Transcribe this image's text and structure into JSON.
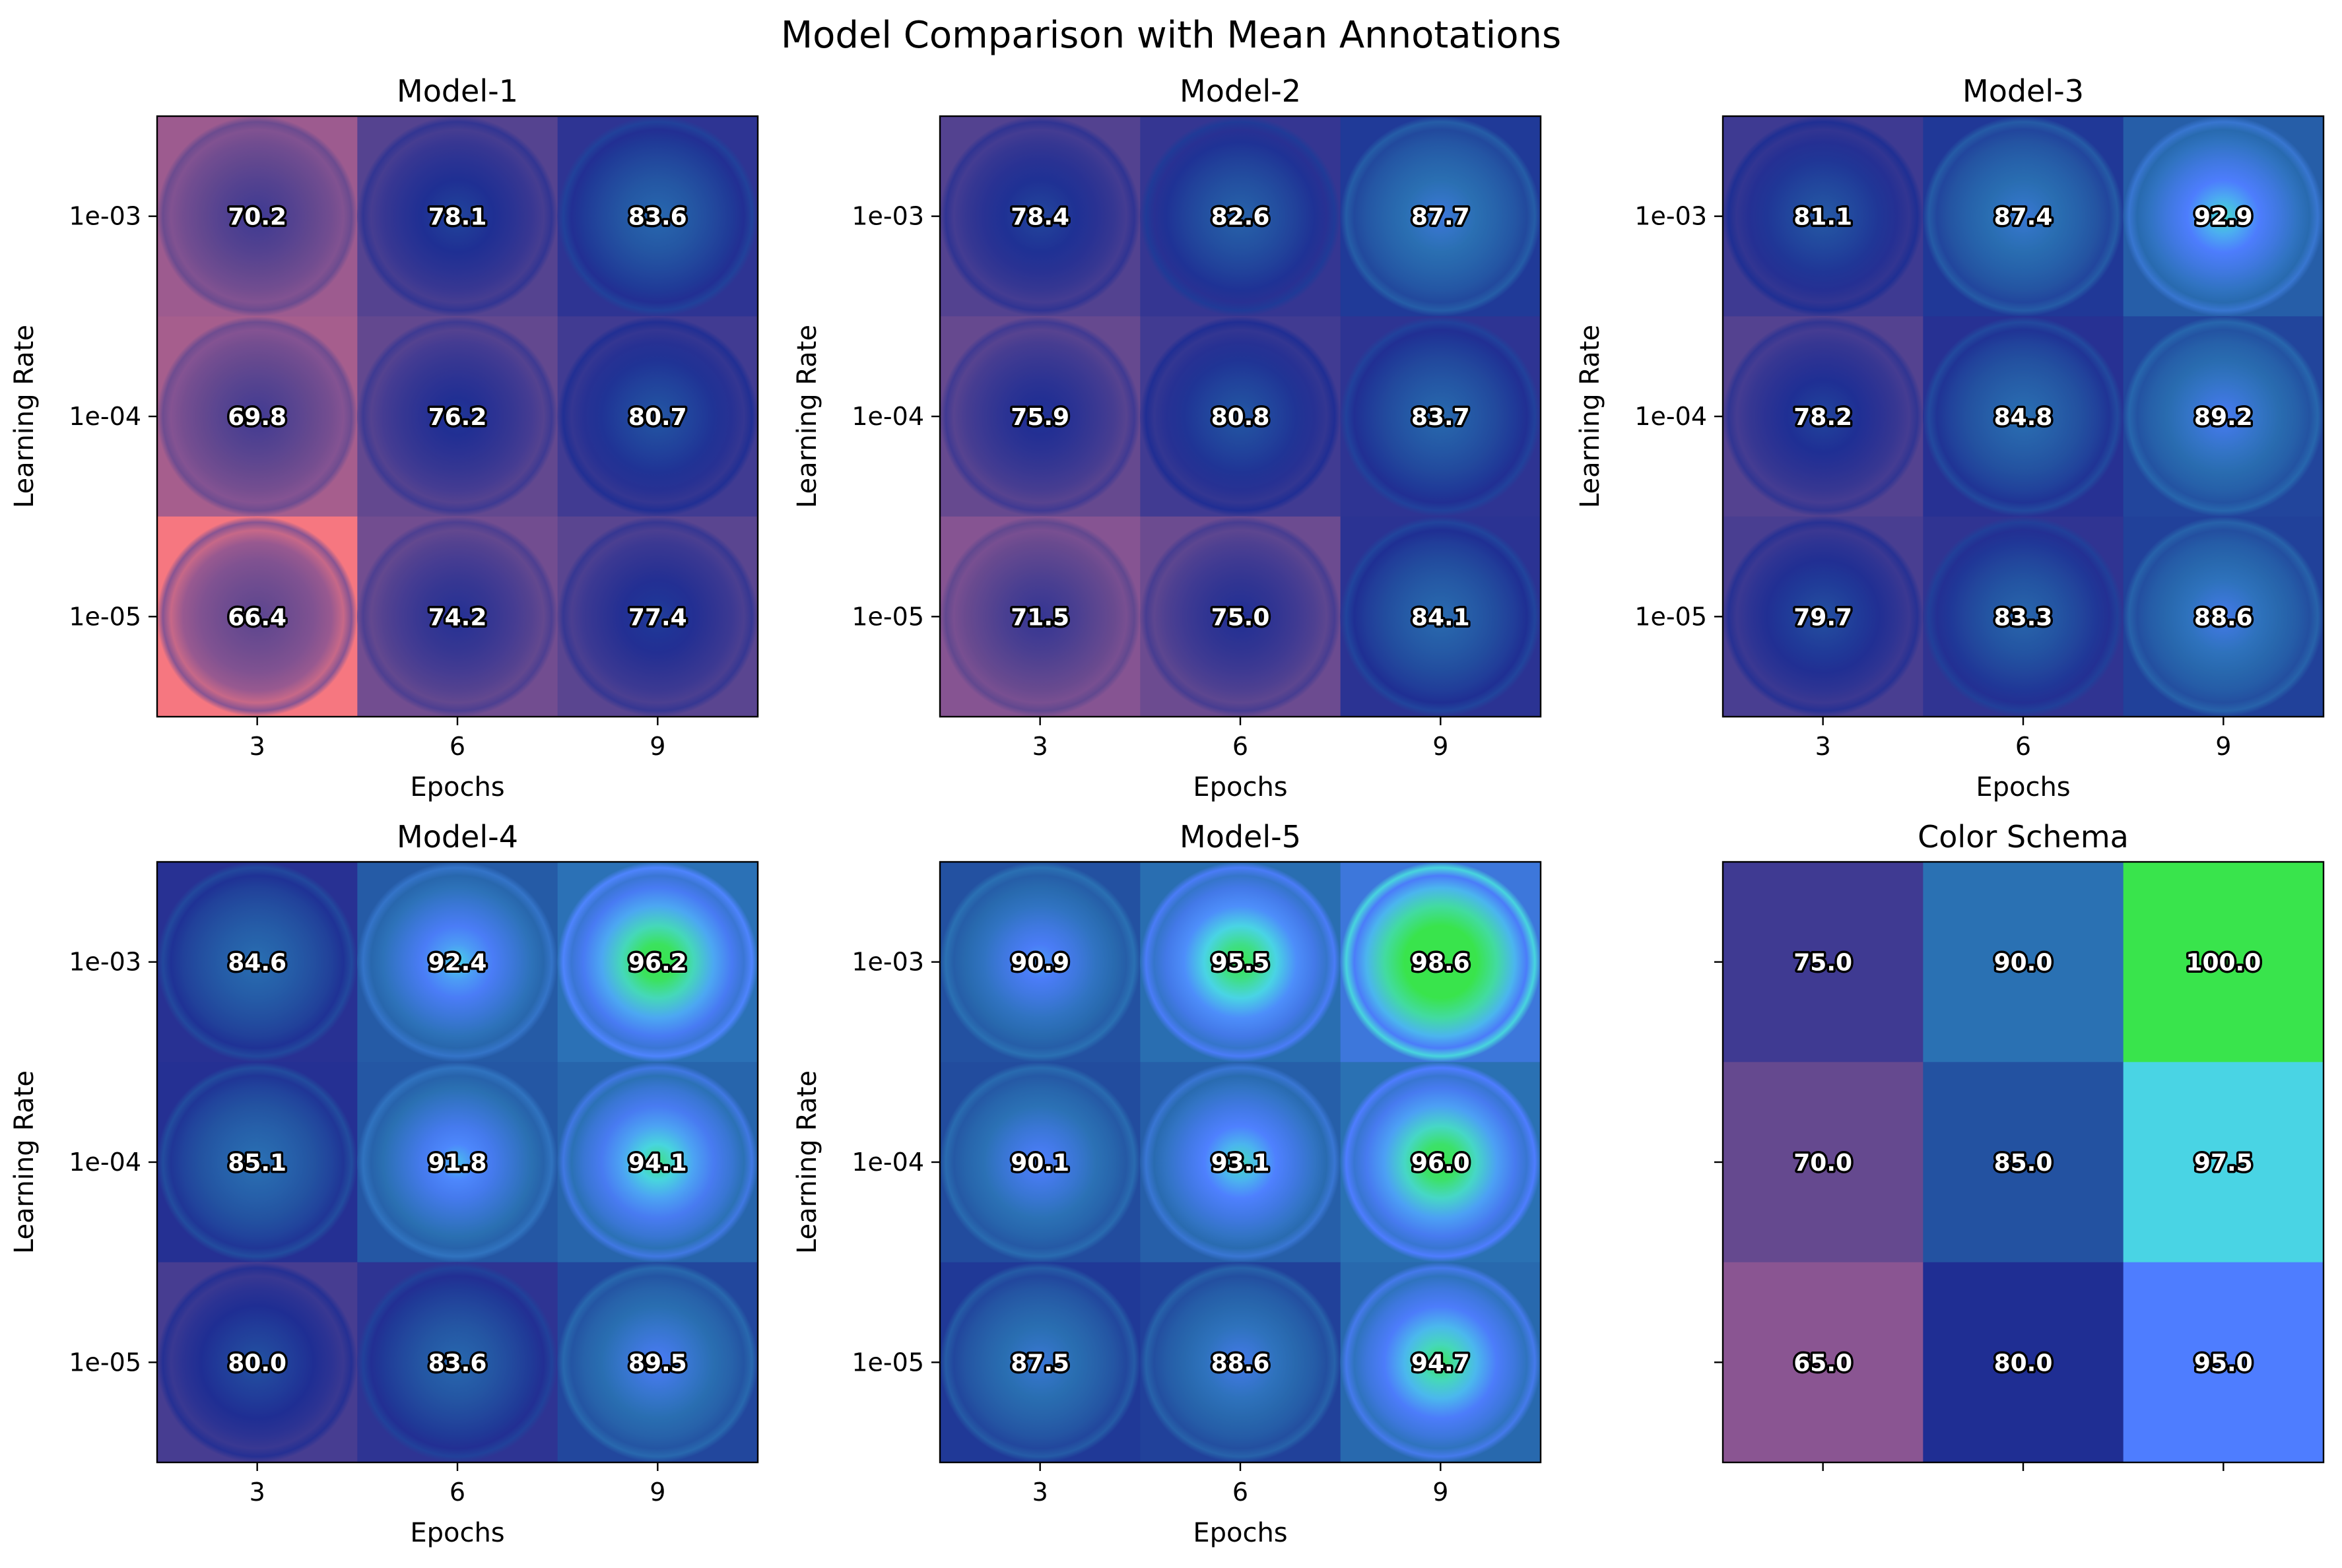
{
  "title": "Model Comparison with Mean Annotations",
  "chart_data": [
    {
      "type": "heatmap",
      "title": "Model-1",
      "xlabel": "Epochs",
      "ylabel": "Learning Rate",
      "x": [
        "3",
        "6",
        "9"
      ],
      "y": [
        "1e-03",
        "1e-04",
        "1e-05"
      ],
      "values": [
        [
          70.2,
          78.1,
          83.6
        ],
        [
          69.8,
          76.2,
          80.7
        ],
        [
          66.4,
          74.2,
          77.4
        ]
      ]
    },
    {
      "type": "heatmap",
      "title": "Model-2",
      "xlabel": "Epochs",
      "ylabel": "Learning Rate",
      "x": [
        "3",
        "6",
        "9"
      ],
      "y": [
        "1e-03",
        "1e-04",
        "1e-05"
      ],
      "values": [
        [
          78.4,
          82.6,
          87.7
        ],
        [
          75.9,
          80.8,
          83.7
        ],
        [
          71.5,
          75.0,
          84.1
        ]
      ]
    },
    {
      "type": "heatmap",
      "title": "Model-3",
      "xlabel": "Epochs",
      "ylabel": "Learning Rate",
      "x": [
        "3",
        "6",
        "9"
      ],
      "y": [
        "1e-03",
        "1e-04",
        "1e-05"
      ],
      "values": [
        [
          81.1,
          87.4,
          92.9
        ],
        [
          78.2,
          84.8,
          89.2
        ],
        [
          79.7,
          83.3,
          88.6
        ]
      ]
    },
    {
      "type": "heatmap",
      "title": "Model-4",
      "xlabel": "Epochs",
      "ylabel": "Learning Rate",
      "x": [
        "3",
        "6",
        "9"
      ],
      "y": [
        "1e-03",
        "1e-04",
        "1e-05"
      ],
      "values": [
        [
          84.6,
          92.4,
          96.2
        ],
        [
          85.1,
          91.8,
          94.1
        ],
        [
          80.0,
          83.6,
          89.5
        ]
      ]
    },
    {
      "type": "heatmap",
      "title": "Model-5",
      "xlabel": "Epochs",
      "ylabel": "Learning Rate",
      "x": [
        "3",
        "6",
        "9"
      ],
      "y": [
        "1e-03",
        "1e-04",
        "1e-05"
      ],
      "values": [
        [
          90.9,
          95.5,
          98.6
        ],
        [
          90.1,
          93.1,
          96.0
        ],
        [
          87.5,
          88.6,
          94.7
        ]
      ]
    },
    {
      "type": "heatmap",
      "title": "Color Schema",
      "xlabel": "",
      "ylabel": "",
      "x": [
        "",
        "",
        ""
      ],
      "y": [
        "",
        "",
        ""
      ],
      "values": [
        [
          75.0,
          90.0,
          100.0
        ],
        [
          70.0,
          85.0,
          97.5
        ],
        [
          65.0,
          80.0,
          95.0
        ]
      ]
    }
  ],
  "colormap": [
    {
      "value": 65,
      "color": "#8a5592"
    },
    {
      "value": 70,
      "color": "#65498f"
    },
    {
      "value": 75,
      "color": "#3f3a92"
    },
    {
      "value": 80,
      "color": "#1f2e93"
    },
    {
      "value": 85,
      "color": "#2352a1"
    },
    {
      "value": 90,
      "color": "#2a71b3"
    },
    {
      "value": 95,
      "color": "#4e7dff"
    },
    {
      "value": 97.5,
      "color": "#49d4e4"
    },
    {
      "value": 100,
      "color": "#39e44c"
    }
  ],
  "low_color": "#ff7a7e"
}
